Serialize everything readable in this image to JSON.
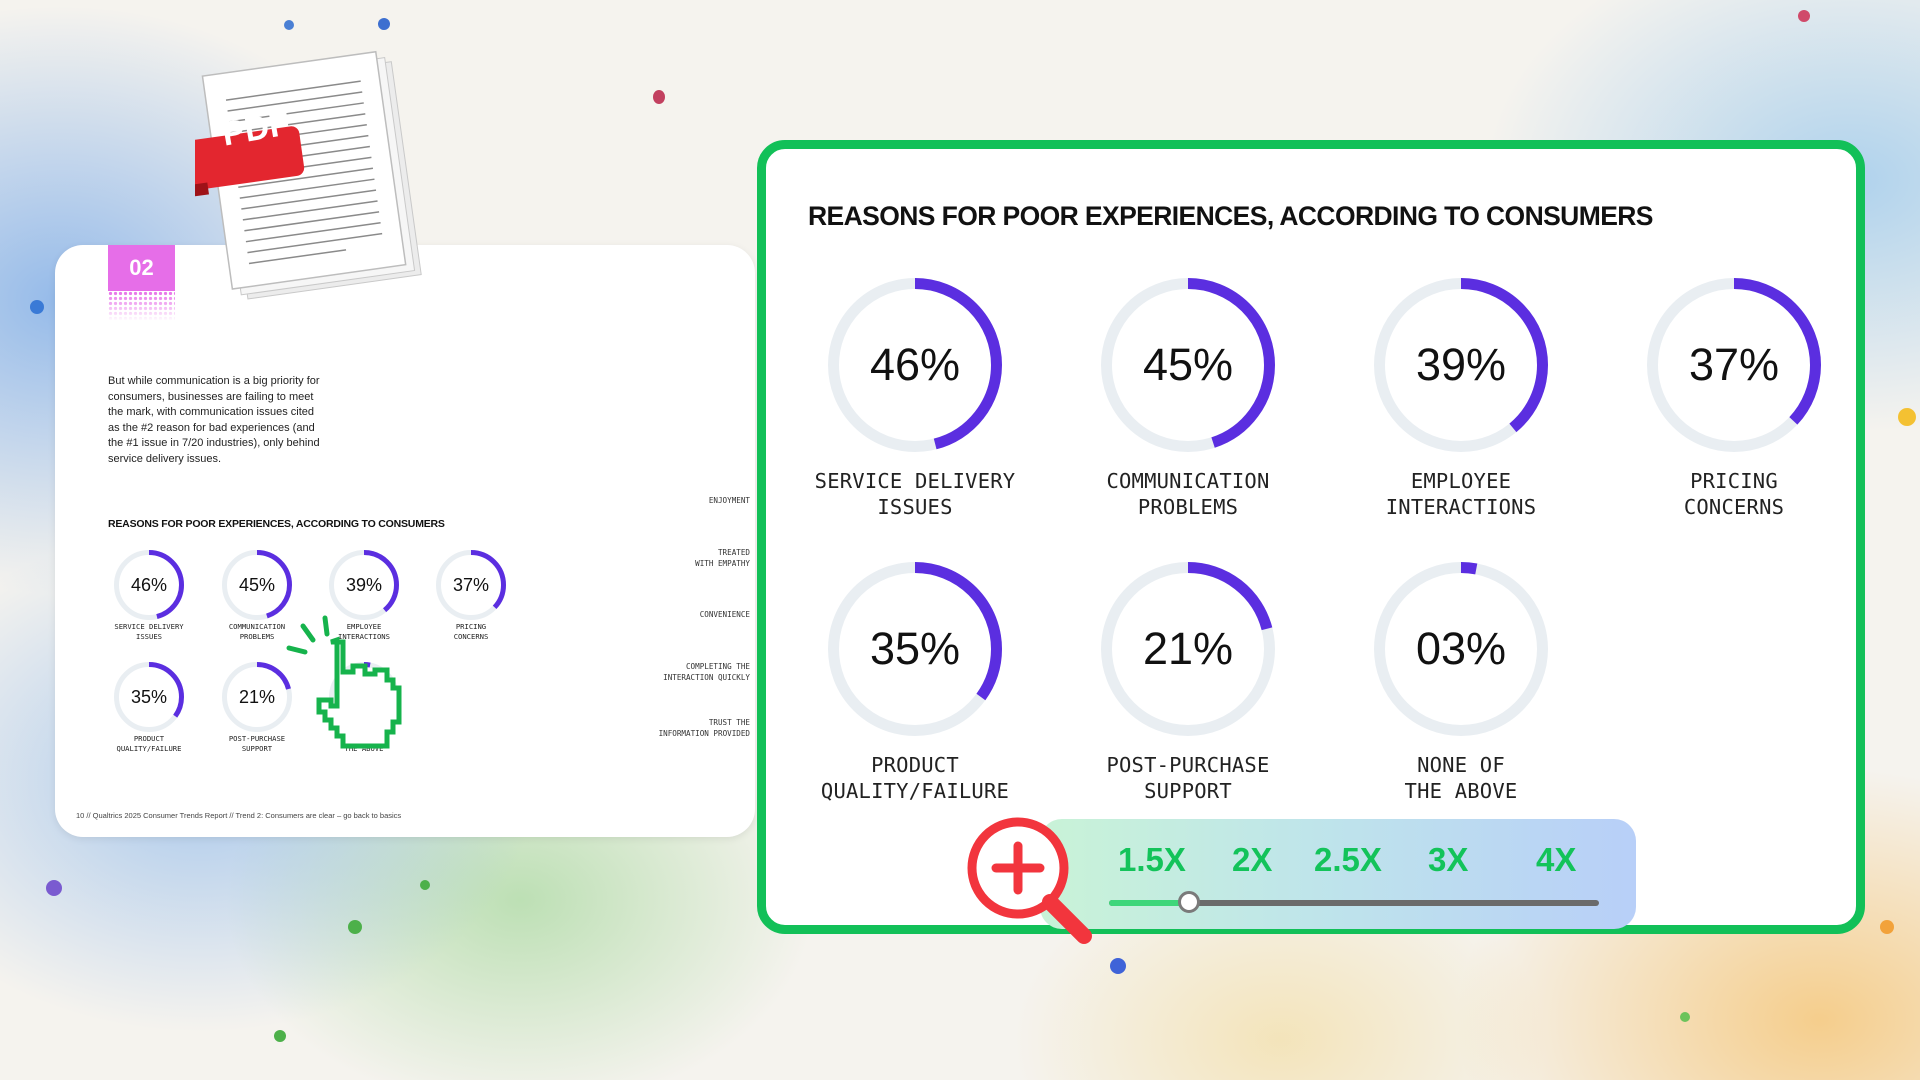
{
  "document": {
    "section_number": "02",
    "paragraph": "But while communication is a big priority for consumers, businesses are failing to meet the mark, with communication issues cited as the #2 reason for bad experiences (and the #1 issue in 7/20 industries), only behind service delivery issues.",
    "chart_title": "REASONS FOR POOR EXPERIENCES, ACCORDING TO CONSUMERS",
    "side_labels": [
      "ENJOYMENT",
      "TREATED\nWITH EMPATHY",
      "CONVENIENCE",
      "COMPLETING THE\nINTERACTION QUICKLY",
      "TRUST THE\nINFORMATION PROVIDED"
    ],
    "footer": "10  //  Qualtrics 2025 Consumer Trends Report  //  Trend 2: Consumers are clear – go back to basics"
  },
  "pdf_icon": {
    "label": "PDF"
  },
  "zoom_panel": {
    "title": "REASONS FOR POOR EXPERIENCES, ACCORDING TO CONSUMERS"
  },
  "chart_data": {
    "type": "donut",
    "title": "REASONS FOR POOR EXPERIENCES, ACCORDING TO CONSUMERS",
    "categories": [
      "SERVICE DELIVERY\nISSUES",
      "COMMUNICATION\nPROBLEMS",
      "EMPLOYEE\nINTERACTIONS",
      "PRICING\nCONCERNS",
      "PRODUCT\nQUALITY/FAILURE",
      "POST-PURCHASE\nSUPPORT",
      "NONE OF\nTHE ABOVE"
    ],
    "values": [
      46,
      45,
      39,
      37,
      35,
      21,
      3
    ],
    "value_labels": [
      "46%",
      "45%",
      "39%",
      "37%",
      "35%",
      "21%",
      "03%"
    ],
    "unit": "%",
    "range": [
      0,
      100
    ]
  },
  "zoom_control": {
    "levels": [
      "1.5X",
      "2X",
      "2.5X",
      "3X",
      "4X"
    ],
    "current_level": "2X",
    "icon": "magnifier-plus-icon"
  },
  "colors": {
    "accent_purple": "#5b2ee0",
    "ring_track": "#e9eef2",
    "panel_border": "#12c058",
    "section_badge": "#e66ee8",
    "zoom_label": "#13c35a",
    "magnifier": "#f2353d"
  }
}
